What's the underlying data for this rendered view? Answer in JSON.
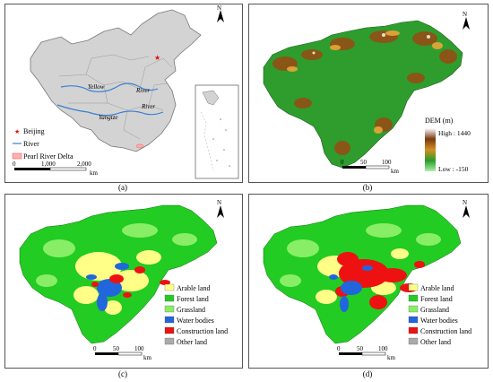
{
  "captions": {
    "a": "(a)",
    "b": "(b)",
    "c": "(c)",
    "d": "(d)"
  },
  "north_label": "N",
  "panel_a": {
    "legend": [
      "Beijing",
      "River",
      "Pearl River Delta"
    ],
    "rivers": [
      "Yellow",
      "River",
      "Yangtze",
      "River"
    ],
    "scale": {
      "ticks": [
        "0",
        "1,000",
        "2,000"
      ],
      "unit": "km"
    }
  },
  "panel_b": {
    "legend_title": "DEM (m)",
    "high_label": "High : 1440",
    "low_label": "Low : -150",
    "scale": {
      "ticks": [
        "0",
        "50",
        "100"
      ],
      "unit": "km"
    }
  },
  "panel_c": {
    "legend": [
      {
        "label": "Arable land",
        "color": "#ffff88"
      },
      {
        "label": "Forest land",
        "color": "#22cc22"
      },
      {
        "label": "Grassland",
        "color": "#88ee66"
      },
      {
        "label": "Water bodies",
        "color": "#2266dd"
      },
      {
        "label": "Construction land",
        "color": "#ee1111"
      },
      {
        "label": "Other land",
        "color": "#aaaaaa"
      }
    ],
    "scale": {
      "ticks": [
        "0",
        "50",
        "100"
      ],
      "unit": "km"
    }
  },
  "panel_d": {
    "legend": [
      {
        "label": "Arable land",
        "color": "#ffff88"
      },
      {
        "label": "Forest land",
        "color": "#22cc22"
      },
      {
        "label": "Grassland",
        "color": "#88ee66"
      },
      {
        "label": "Water bodies",
        "color": "#2266dd"
      },
      {
        "label": "Construction land",
        "color": "#ee1111"
      },
      {
        "label": "Other land",
        "color": "#aaaaaa"
      }
    ],
    "scale": {
      "ticks": [
        "0",
        "50",
        "100"
      ],
      "unit": "km"
    }
  }
}
